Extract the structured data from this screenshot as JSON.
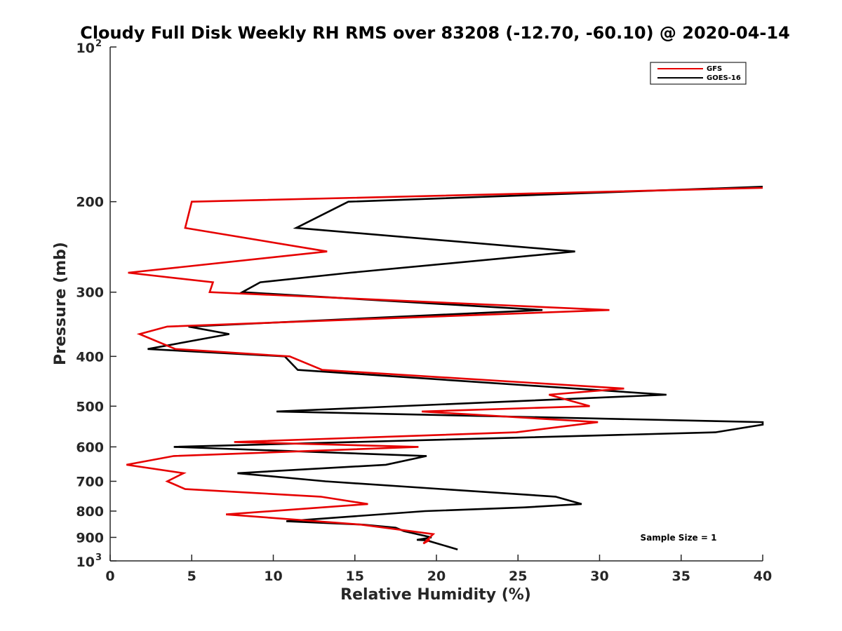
{
  "chart_data": {
    "type": "line",
    "title": "Cloudy Full Disk Weekly RH RMS over 83208 (-12.70, -60.10) @ 2020-04-14",
    "xlabel": "Relative Humidity (%)",
    "ylabel": "Pressure (mb)",
    "xlim": [
      0,
      40
    ],
    "ylim": [
      100,
      1000
    ],
    "yscale": "log",
    "y_reversed": true,
    "x_ticks": [
      0,
      5,
      10,
      15,
      20,
      25,
      30,
      35,
      40
    ],
    "x_tick_labels": [
      "0",
      "5",
      "10",
      "15",
      "20",
      "25",
      "30",
      "35",
      "40"
    ],
    "y_ticks": [
      200,
      300,
      400,
      500,
      600,
      700,
      800,
      900
    ],
    "y_tick_labels": [
      "200",
      "300",
      "400",
      "500",
      "600",
      "700",
      "800",
      "900"
    ],
    "y_end_labels": [
      {
        "base": "10",
        "exp": "2",
        "value": 100
      },
      {
        "base": "10",
        "exp": "3",
        "value": 1000
      }
    ],
    "grid": false,
    "legend_position": "top-right",
    "annotation": "Sample Size = 1",
    "series": [
      {
        "name": "GFS",
        "color": "#e60000",
        "points": [
          [
            40.0,
            188
          ],
          [
            5.0,
            200
          ],
          [
            4.6,
            225
          ],
          [
            13.3,
            250
          ],
          [
            1.1,
            275
          ],
          [
            6.3,
            287
          ],
          [
            6.1,
            300
          ],
          [
            30.6,
            325
          ],
          [
            3.5,
            350
          ],
          [
            1.8,
            362
          ],
          [
            4.0,
            387
          ],
          [
            11.0,
            400
          ],
          [
            13.0,
            425
          ],
          [
            31.5,
            462
          ],
          [
            26.9,
            475
          ],
          [
            29.4,
            500
          ],
          [
            19.1,
            512
          ],
          [
            29.9,
            537
          ],
          [
            24.9,
            562
          ],
          [
            7.6,
            587
          ],
          [
            18.9,
            600
          ],
          [
            3.9,
            625
          ],
          [
            1.0,
            650
          ],
          [
            4.5,
            675
          ],
          [
            3.5,
            700
          ],
          [
            4.6,
            725
          ],
          [
            12.9,
            750
          ],
          [
            15.8,
            775
          ],
          [
            7.1,
            812
          ],
          [
            15.4,
            850
          ],
          [
            19.8,
            887
          ],
          [
            19.2,
            925
          ],
          [
            19.6,
            910
          ]
        ]
      },
      {
        "name": "GOES-16",
        "color": "#000000",
        "points": [
          [
            40.0,
            187
          ],
          [
            14.6,
            200
          ],
          [
            11.4,
            225
          ],
          [
            28.5,
            250
          ],
          [
            14.7,
            275
          ],
          [
            9.2,
            287
          ],
          [
            8.1,
            300
          ],
          [
            26.5,
            325
          ],
          [
            4.8,
            350
          ],
          [
            7.3,
            362
          ],
          [
            2.3,
            387
          ],
          [
            10.7,
            400
          ],
          [
            11.5,
            425
          ],
          [
            34.1,
            475
          ],
          [
            10.2,
            512
          ],
          [
            40.0,
            537
          ],
          [
            40.0,
            543
          ],
          [
            37.1,
            562
          ],
          [
            3.9,
            600
          ],
          [
            19.4,
            625
          ],
          [
            16.9,
            650
          ],
          [
            7.8,
            675
          ],
          [
            13.2,
            700
          ],
          [
            27.3,
            750
          ],
          [
            28.9,
            775
          ],
          [
            25.4,
            787
          ],
          [
            19.3,
            800
          ],
          [
            10.8,
            837
          ],
          [
            15.5,
            850
          ],
          [
            17.5,
            862
          ],
          [
            18.0,
            875
          ],
          [
            19.7,
            900
          ],
          [
            18.8,
            910
          ],
          [
            19.4,
            912
          ],
          [
            21.3,
            950
          ]
        ]
      }
    ]
  }
}
